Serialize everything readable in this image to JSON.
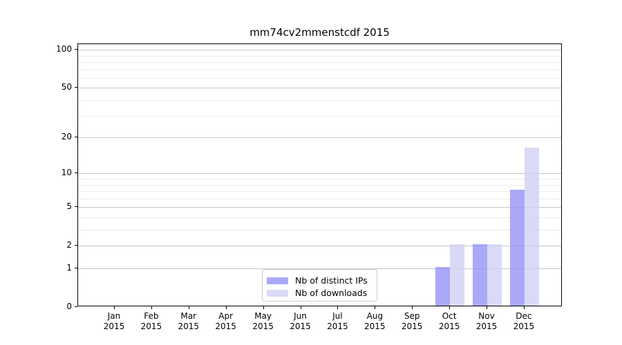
{
  "chart_data": {
    "type": "bar",
    "title": "mm74cv2mmenstcdf 2015",
    "categories": [
      "Jan",
      "Feb",
      "Mar",
      "Apr",
      "May",
      "Jun",
      "Jul",
      "Aug",
      "Sep",
      "Oct",
      "Nov",
      "Dec"
    ],
    "year_label": "2015",
    "series": [
      {
        "name": "Nb of distinct IPs",
        "color": "rgba(148,148,245,0.8)",
        "values": [
          0,
          0,
          0,
          0,
          0,
          0,
          0,
          0,
          0,
          1,
          2,
          7
        ]
      },
      {
        "name": "Nb of downloads",
        "color": "rgba(209,209,245,0.8)",
        "values": [
          0,
          0,
          0,
          0,
          0,
          0,
          0,
          0,
          0,
          2,
          2,
          16
        ]
      }
    ],
    "xlabel": "",
    "ylabel": "",
    "yscale": "log1p",
    "ylim": [
      0,
      110
    ],
    "yticks": [
      0,
      1,
      2,
      5,
      10,
      20,
      50,
      100
    ],
    "yticklabels": [
      "0",
      "1",
      "2",
      "5",
      "10",
      "20",
      "50",
      "100"
    ],
    "ygrid_minor": [
      3,
      4,
      6,
      7,
      8,
      9,
      30,
      40,
      60,
      70,
      80,
      90
    ],
    "grid": true,
    "legend_position": "bottom-center"
  },
  "colors": {
    "bar_distinct_ips": "rgba(148,148,245,0.8)",
    "bar_downloads": "rgba(209,209,245,0.8)",
    "grid_major": "#c6c6c6",
    "grid_minor": "#ececec",
    "axis": "#000000",
    "text": "#000000",
    "legend_border": "#cccccc"
  }
}
